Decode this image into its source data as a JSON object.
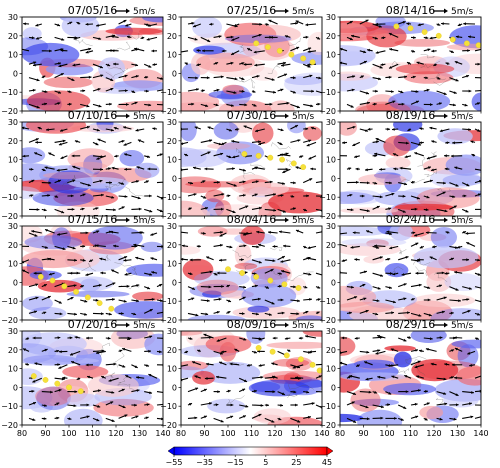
{
  "chart_data": {
    "type": "heatmap",
    "reference_vector_label": "5m/s",
    "x_ticks": [
      "80",
      "90",
      "100",
      "110",
      "120",
      "130",
      "140"
    ],
    "y_ticks": [
      "30",
      "20",
      "10",
      "0",
      "−10",
      "−20"
    ],
    "xlim": [
      80,
      140
    ],
    "ylim": [
      -20,
      30
    ],
    "colorbar": {
      "ticks": [
        "−55",
        "−35",
        "−15",
        "5",
        "25",
        "45"
      ],
      "range": [
        -55,
        45
      ],
      "colors": [
        "#0000ff",
        "#ffffff",
        "#ff0000"
      ]
    },
    "panels": [
      {
        "title": "07/05/16",
        "track": []
      },
      {
        "title": "07/25/16",
        "track": [
          [
            112,
            16
          ],
          [
            117,
            14
          ],
          [
            122,
            12
          ],
          [
            127,
            10
          ],
          [
            132,
            8
          ],
          [
            136,
            6
          ]
        ]
      },
      {
        "title": "08/14/16",
        "track": [
          [
            104,
            25
          ],
          [
            110,
            24
          ],
          [
            116,
            22
          ],
          [
            122,
            20
          ],
          [
            128,
            18
          ],
          [
            134,
            16
          ],
          [
            139,
            15
          ]
        ]
      },
      {
        "title": "07/10/16",
        "track": []
      },
      {
        "title": "07/30/16",
        "track": [
          [
            107,
            13
          ],
          [
            113,
            12
          ],
          [
            118,
            11
          ],
          [
            123,
            10
          ],
          [
            128,
            8
          ],
          [
            132,
            6
          ]
        ]
      },
      {
        "title": "08/19/16",
        "track": []
      },
      {
        "title": "07/15/16",
        "track": [
          [
            88,
            3
          ],
          [
            93,
            1
          ],
          [
            98,
            -2
          ],
          [
            103,
            -5
          ],
          [
            108,
            -8
          ],
          [
            113,
            -11
          ],
          [
            118,
            -14
          ]
        ]
      },
      {
        "title": "08/04/16",
        "track": [
          [
            100,
            7
          ],
          [
            106,
            5
          ],
          [
            112,
            3
          ],
          [
            118,
            1
          ],
          [
            124,
            -1
          ],
          [
            130,
            -3
          ]
        ]
      },
      {
        "title": "08/24/16",
        "track": []
      },
      {
        "title": "07/20/16",
        "track": [
          [
            85,
            6
          ],
          [
            90,
            4
          ],
          [
            95,
            2
          ],
          [
            100,
            0
          ],
          [
            105,
            -2
          ]
        ]
      },
      {
        "title": "08/09/16",
        "track": [
          [
            113,
            21
          ],
          [
            119,
            19
          ],
          [
            125,
            17
          ],
          [
            131,
            15
          ],
          [
            136,
            12
          ],
          [
            139,
            9
          ]
        ]
      },
      {
        "title": "08/29/16",
        "track": []
      }
    ]
  }
}
